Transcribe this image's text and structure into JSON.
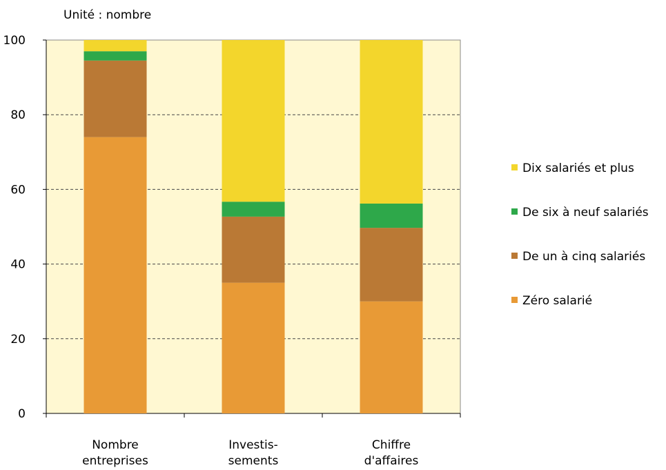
{
  "chart_data": {
    "type": "bar",
    "stacked": true,
    "unit_label": "Unité : nombre",
    "categories": [
      [
        "Nombre",
        "entreprises"
      ],
      [
        "Investis-",
        "sements"
      ],
      [
        "Chiffre",
        "d'affaires"
      ]
    ],
    "series": [
      {
        "name": "Zéro salarié",
        "color": "#E89A36",
        "values": [
          74,
          35,
          30
        ]
      },
      {
        "name": "De un à cinq salariés",
        "color": "#BA7935",
        "values": [
          20.5,
          17.7,
          19.7
        ]
      },
      {
        "name": "De six à neuf salariés",
        "color": "#2EA84A",
        "values": [
          2.5,
          4,
          6.5
        ]
      },
      {
        "name": "Dix salariés et plus",
        "color": "#F3D62C",
        "values": [
          3,
          43.3,
          43.8
        ]
      }
    ],
    "legend_order": [
      "Dix salariés et plus",
      "De six à neuf salariés",
      "De un à cinq salariés",
      "Zéro salarié"
    ],
    "ylim": [
      0,
      100
    ],
    "yticks": [
      0,
      20,
      40,
      60,
      80,
      100
    ],
    "grid": true,
    "plot_background": "#FFF8D2",
    "legend_position": "right"
  }
}
